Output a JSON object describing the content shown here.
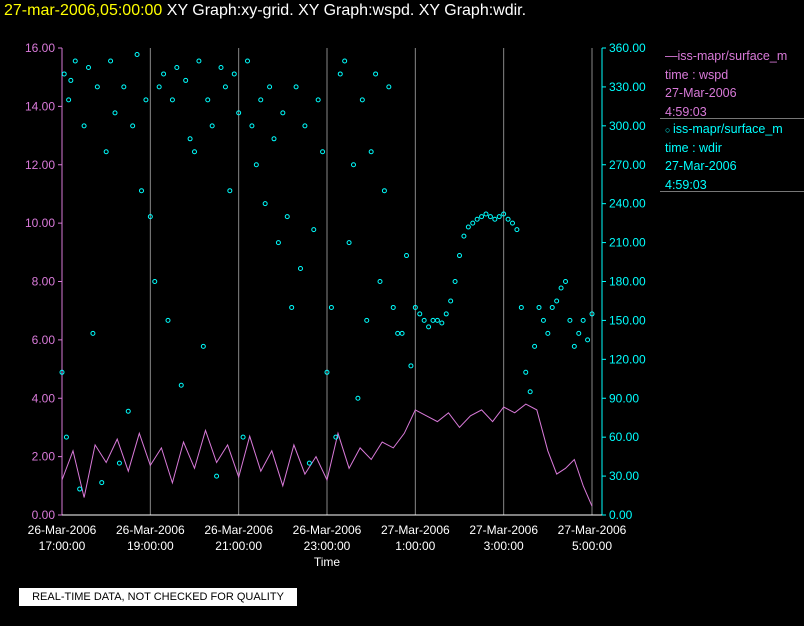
{
  "header": {
    "timestamp": "27-mar-2006,05:00:00",
    "titles": "XY Graph:xy-grid.  XY Graph:wspd.  XY Graph:wdir."
  },
  "legend": [
    {
      "label": "—iss-mapr/surface_m",
      "var_line": "time : wspd",
      "date": "27-Mar-2006",
      "time": "4:59:03"
    },
    {
      "label": "iss-mapr/surface_m",
      "var_line": "time : wdir",
      "date": "27-Mar-2006",
      "time": "4:59:03"
    }
  ],
  "disclaimer": "REAL-TIME DATA, NOT CHECKED FOR QUALITY",
  "colors": {
    "wspd": "#d97ad9",
    "wdir": "#00ffff",
    "grid": "#888888",
    "axis_text": "#ffffff"
  },
  "chart_data": {
    "type": "scatter",
    "xlabel": "Time",
    "ylabel_left": "",
    "ylabel_right": "",
    "xlim_hours": [
      0,
      12
    ],
    "ylim_left": [
      0,
      16
    ],
    "ylim_right": [
      0,
      360
    ],
    "grid": true,
    "x_ticks": [
      {
        "h": 0,
        "date": "26-Mar-2006",
        "time": "17:00:00"
      },
      {
        "h": 2,
        "date": "26-Mar-2006",
        "time": "19:00:00"
      },
      {
        "h": 4,
        "date": "26-Mar-2006",
        "time": "21:00:00"
      },
      {
        "h": 6,
        "date": "26-Mar-2006",
        "time": "23:00:00"
      },
      {
        "h": 8,
        "date": "27-Mar-2006",
        "time": "1:00:00"
      },
      {
        "h": 10,
        "date": "27-Mar-2006",
        "time": "3:00:00"
      },
      {
        "h": 12,
        "date": "27-Mar-2006",
        "time": "5:00:00"
      }
    ],
    "y_left_ticks": [
      "0.00",
      "2.00",
      "4.00",
      "6.00",
      "8.00",
      "10.00",
      "12.00",
      "14.00",
      "16.00"
    ],
    "y_right_ticks": [
      "0.00",
      "30.00",
      "60.00",
      "90.00",
      "120.00",
      "150.00",
      "180.00",
      "210.00",
      "240.00",
      "270.00",
      "300.00",
      "330.00",
      "360.00"
    ],
    "series": [
      {
        "name": "wspd",
        "axis": "left",
        "style": "line",
        "x": [
          0.0,
          0.25,
          0.5,
          0.75,
          1.0,
          1.25,
          1.5,
          1.75,
          2.0,
          2.25,
          2.5,
          2.75,
          3.0,
          3.25,
          3.5,
          3.75,
          4.0,
          4.25,
          4.5,
          4.75,
          5.0,
          5.25,
          5.5,
          5.75,
          6.0,
          6.25,
          6.5,
          6.75,
          7.0,
          7.25,
          7.5,
          7.75,
          8.0,
          8.25,
          8.5,
          8.75,
          9.0,
          9.25,
          9.5,
          9.75,
          10.0,
          10.25,
          10.5,
          10.75,
          11.0,
          11.2,
          11.4,
          11.6,
          11.8,
          12.0
        ],
        "values": [
          1.2,
          2.2,
          0.6,
          2.4,
          1.8,
          2.6,
          1.5,
          2.8,
          1.7,
          2.3,
          1.1,
          2.5,
          1.6,
          2.9,
          1.8,
          2.4,
          1.3,
          2.7,
          1.5,
          2.2,
          1.0,
          2.4,
          1.4,
          2.0,
          1.2,
          2.8,
          1.6,
          2.3,
          1.9,
          2.5,
          2.3,
          2.8,
          3.6,
          3.4,
          3.2,
          3.5,
          3.0,
          3.4,
          3.6,
          3.2,
          3.7,
          3.5,
          3.8,
          3.6,
          2.2,
          1.4,
          1.6,
          1.9,
          1.0,
          0.3
        ]
      },
      {
        "name": "wdir",
        "axis": "right",
        "style": "markers",
        "x": [
          0.0,
          0.05,
          0.1,
          0.15,
          0.2,
          0.3,
          0.4,
          0.5,
          0.6,
          0.7,
          0.8,
          0.9,
          1.0,
          1.1,
          1.2,
          1.3,
          1.4,
          1.5,
          1.6,
          1.7,
          1.8,
          1.9,
          2.0,
          2.1,
          2.2,
          2.3,
          2.4,
          2.5,
          2.6,
          2.7,
          2.8,
          2.9,
          3.0,
          3.1,
          3.2,
          3.3,
          3.4,
          3.5,
          3.6,
          3.7,
          3.8,
          3.9,
          4.0,
          4.1,
          4.2,
          4.3,
          4.4,
          4.5,
          4.6,
          4.7,
          4.8,
          4.9,
          5.0,
          5.1,
          5.2,
          5.3,
          5.4,
          5.5,
          5.6,
          5.7,
          5.8,
          5.9,
          6.0,
          6.1,
          6.2,
          6.3,
          6.4,
          6.5,
          6.6,
          6.7,
          6.8,
          6.9,
          7.0,
          7.1,
          7.2,
          7.3,
          7.4,
          7.5,
          7.6,
          7.7,
          7.8,
          7.9,
          8.0,
          8.1,
          8.2,
          8.3,
          8.4,
          8.5,
          8.6,
          8.7,
          8.8,
          8.9,
          9.0,
          9.1,
          9.2,
          9.3,
          9.4,
          9.5,
          9.6,
          9.7,
          9.8,
          9.9,
          10.0,
          10.1,
          10.2,
          10.3,
          10.4,
          10.5,
          10.6,
          10.7,
          10.8,
          10.9,
          11.0,
          11.1,
          11.2,
          11.3,
          11.4,
          11.5,
          11.6,
          11.7,
          11.8,
          11.9,
          12.0
        ],
        "values": [
          110,
          340,
          60,
          320,
          335,
          350,
          20,
          300,
          345,
          140,
          330,
          25,
          280,
          350,
          310,
          40,
          330,
          80,
          300,
          355,
          250,
          320,
          230,
          180,
          330,
          340,
          150,
          320,
          345,
          100,
          335,
          290,
          280,
          350,
          130,
          320,
          300,
          30,
          345,
          330,
          250,
          340,
          310,
          60,
          350,
          300,
          270,
          320,
          240,
          330,
          290,
          210,
          310,
          230,
          160,
          330,
          190,
          300,
          40,
          220,
          320,
          280,
          110,
          160,
          60,
          340,
          350,
          210,
          270,
          90,
          320,
          150,
          280,
          340,
          180,
          250,
          330,
          160,
          140,
          140,
          200,
          115,
          160,
          155,
          150,
          145,
          150,
          150,
          148,
          155,
          165,
          180,
          200,
          215,
          222,
          225,
          228,
          230,
          232,
          230,
          228,
          230,
          232,
          228,
          225,
          220,
          160,
          110,
          95,
          130,
          160,
          150,
          140,
          160,
          165,
          175,
          180,
          150,
          130,
          140,
          150,
          135,
          155
        ]
      }
    ]
  }
}
